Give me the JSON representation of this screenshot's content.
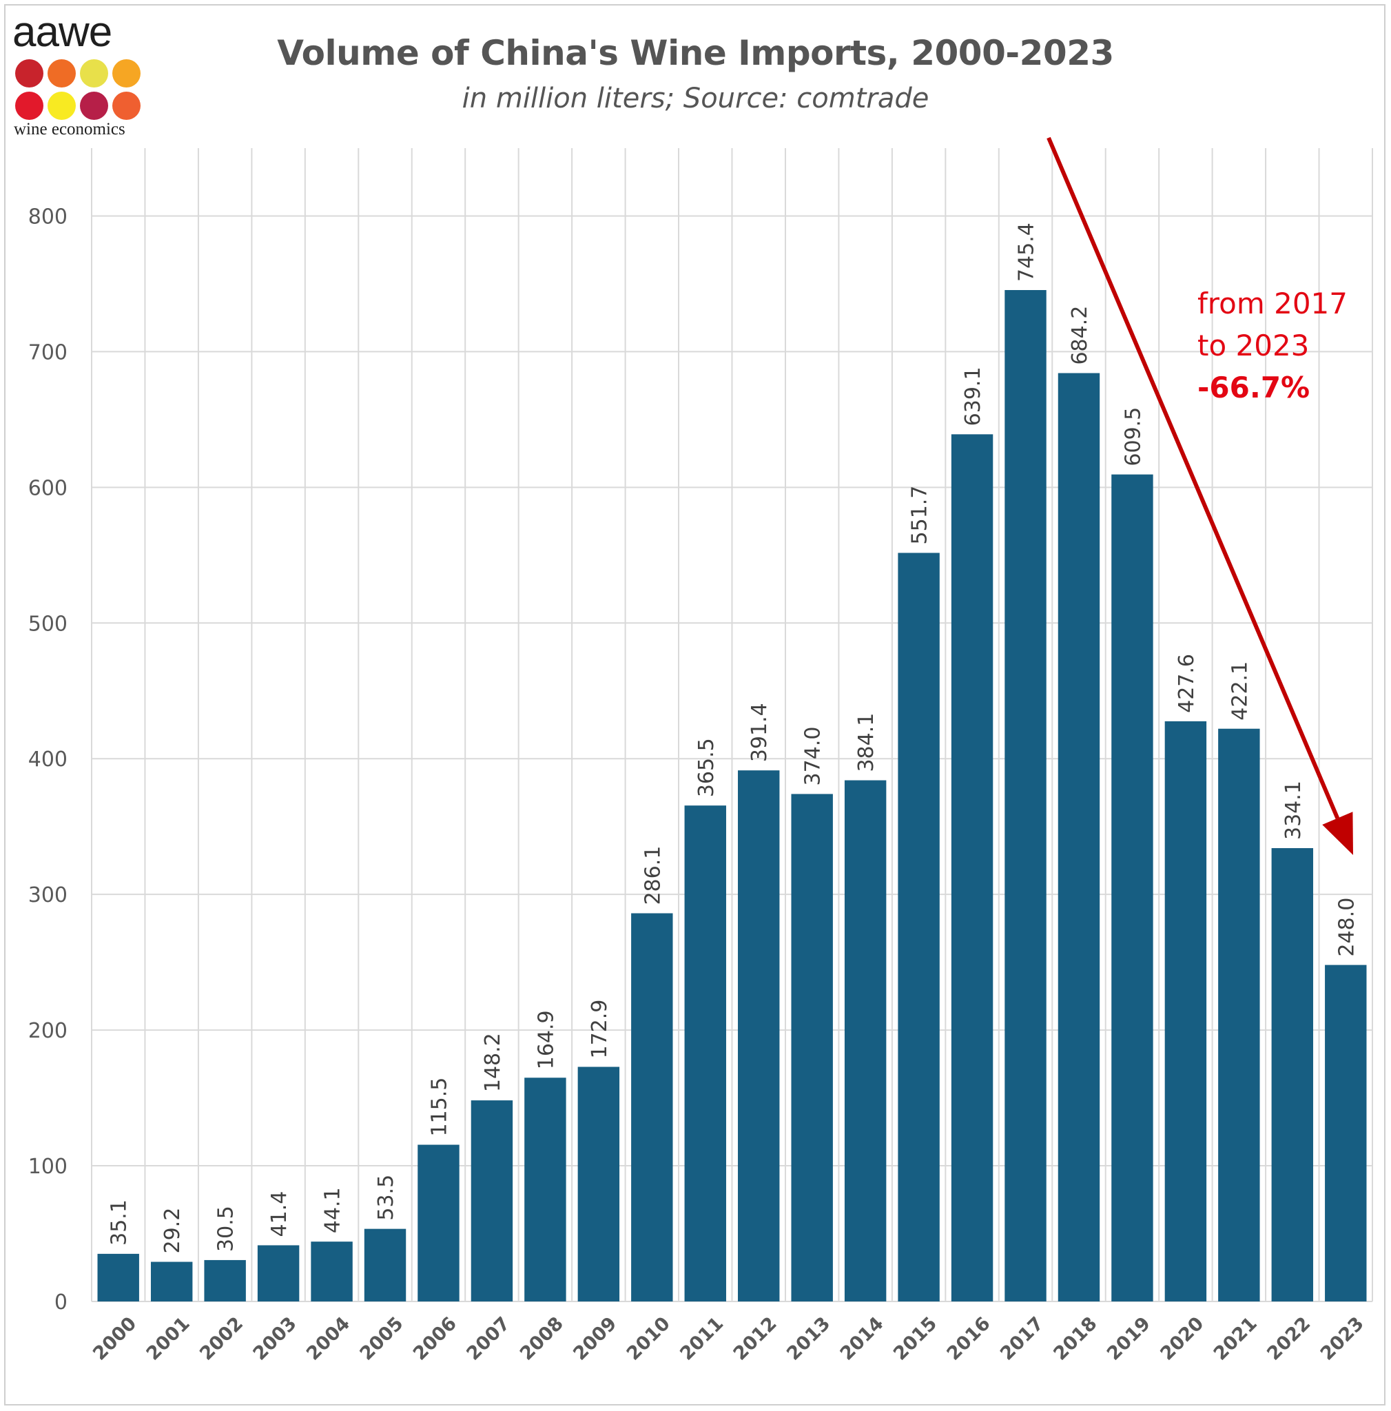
{
  "brand": {
    "wordmark": "aawe",
    "tagline": "wine economics",
    "dot_colors": [
      "#c8232c",
      "#ef6c25",
      "#e8e04a",
      "#f6a623",
      "#e2192b",
      "#f8ea22",
      "#b61f48",
      "#ef5f30"
    ]
  },
  "colors": {
    "bar": "#175e82",
    "grid": "#d9d9d9",
    "axis_text": "#595959",
    "label_text": "#404040",
    "arrow": "#c00000",
    "callout": "#e30613"
  },
  "callout": {
    "line1": "from 2017",
    "line2": "to 2023",
    "change": "-66.7%"
  },
  "chart_data": {
    "type": "bar",
    "title": "Volume of China's Wine Imports, 2000-2023",
    "subtitle": "in million liters; Source: comtrade",
    "categories": [
      "2000",
      "2001",
      "2002",
      "2003",
      "2004",
      "2005",
      "2006",
      "2007",
      "2008",
      "2009",
      "2010",
      "2011",
      "2012",
      "2013",
      "2014",
      "2015",
      "2016",
      "2017",
      "2018",
      "2019",
      "2020",
      "2021",
      "2022",
      "2023"
    ],
    "values": [
      35.1,
      29.2,
      30.5,
      41.4,
      44.1,
      53.5,
      115.5,
      148.2,
      164.9,
      172.9,
      286.1,
      365.5,
      391.4,
      374.0,
      384.1,
      551.7,
      639.1,
      745.4,
      684.2,
      609.5,
      427.6,
      422.1,
      334.1,
      248.0
    ],
    "data_labels": [
      "35.1",
      "29.2",
      "30.5",
      "41.4",
      "44.1",
      "53.5",
      "115.5",
      "148.2",
      "164.9",
      "172.9",
      "286.1",
      "365.5",
      "391.4",
      "374.0",
      "384.1",
      "551.7",
      "639.1",
      "745.4",
      "684.2",
      "609.5",
      "427.6",
      "422.1",
      "334.1",
      "248.0"
    ],
    "yticks": [
      0,
      100,
      200,
      300,
      400,
      500,
      600,
      700,
      800
    ],
    "ylim": [
      0,
      850
    ],
    "grid": true,
    "legend": "none"
  }
}
